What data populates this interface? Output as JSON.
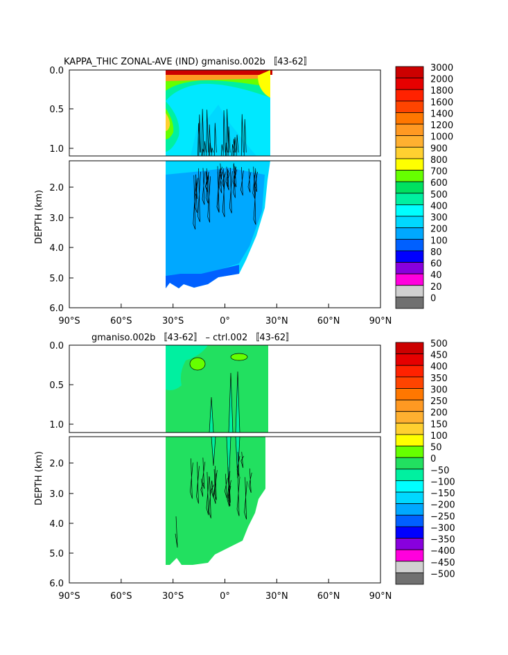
{
  "chart_data": [
    {
      "type": "heatmap",
      "title": "KAPPA_THIC ZONAL-AVE (IND) gmaniso.002b 〚43-62〛",
      "ylabel": "DEPTH (km)",
      "xticks": [
        "90°S",
        "60°S",
        "30°S",
        "0°",
        "30°N",
        "60°N",
        "90°N"
      ],
      "yticks_upper": [
        "0.0",
        "0.5",
        "1.0"
      ],
      "yticks_lower": [
        "2.0",
        "3.0",
        "4.0",
        "5.0",
        "6.0"
      ],
      "xlim": [
        -90,
        90
      ],
      "ylim_upper": [
        0.0,
        1.1
      ],
      "ylim_lower": [
        1.1,
        6.0
      ],
      "legend_position": "right",
      "colorbar_labels": [
        "3000",
        "2000",
        "1800",
        "1600",
        "1400",
        "1200",
        "1000",
        "900",
        "800",
        "700",
        "600",
        "500",
        "400",
        "300",
        "200",
        "100",
        "80",
        "60",
        "40",
        "20",
        "0"
      ],
      "colorbar_colors": [
        "#cc0000",
        "#e60000",
        "#ff2200",
        "#ff4400",
        "#ff7700",
        "#ff9922",
        "#ffb030",
        "#ffd030",
        "#ffff00",
        "#66ff00",
        "#00e060",
        "#00f0a0",
        "#00ffff",
        "#00d8ff",
        "#00a8ff",
        "#0060ff",
        "#0000ff",
        "#8800dd",
        "#ff00dd",
        "#d0d0d0",
        "#707070"
      ],
      "dominant_values": {
        "surface": 3000,
        "upper_ocean": 500,
        "deep_ocean": 300,
        "bottom": 200
      }
    },
    {
      "type": "heatmap",
      "title": "gmaniso.002b 〚43-62〛 – ctrl.002 〚43-62〛",
      "ylabel": "DEPTH (km)",
      "xticks": [
        "90°S",
        "60°S",
        "30°S",
        "0°",
        "30°N",
        "60°N",
        "90°N"
      ],
      "yticks_upper": [
        "0.0",
        "0.5",
        "1.0"
      ],
      "yticks_lower": [
        "2.0",
        "3.0",
        "4.0",
        "5.0",
        "6.0"
      ],
      "xlim": [
        -90,
        90
      ],
      "ylim_upper": [
        0.0,
        1.1
      ],
      "ylim_lower": [
        1.1,
        6.0
      ],
      "legend_position": "right",
      "colorbar_labels": [
        "500",
        "450",
        "400",
        "350",
        "300",
        "250",
        "200",
        "150",
        "100",
        "50",
        "0",
        "−50",
        "−100",
        "−150",
        "−200",
        "−250",
        "−300",
        "−350",
        "−400",
        "−450",
        "−500"
      ],
      "colorbar_colors": [
        "#cc0000",
        "#e60000",
        "#ff2200",
        "#ff4400",
        "#ff7700",
        "#ff9922",
        "#ffb030",
        "#ffd030",
        "#ffff00",
        "#66ff00",
        "#22e060",
        "#00f0a0",
        "#00ffff",
        "#00d8ff",
        "#00a8ff",
        "#0060ff",
        "#0000ff",
        "#8800dd",
        "#ff00dd",
        "#d0d0d0",
        "#707070"
      ],
      "dominant_values": {
        "background": 0,
        "patches": -50
      }
    }
  ]
}
